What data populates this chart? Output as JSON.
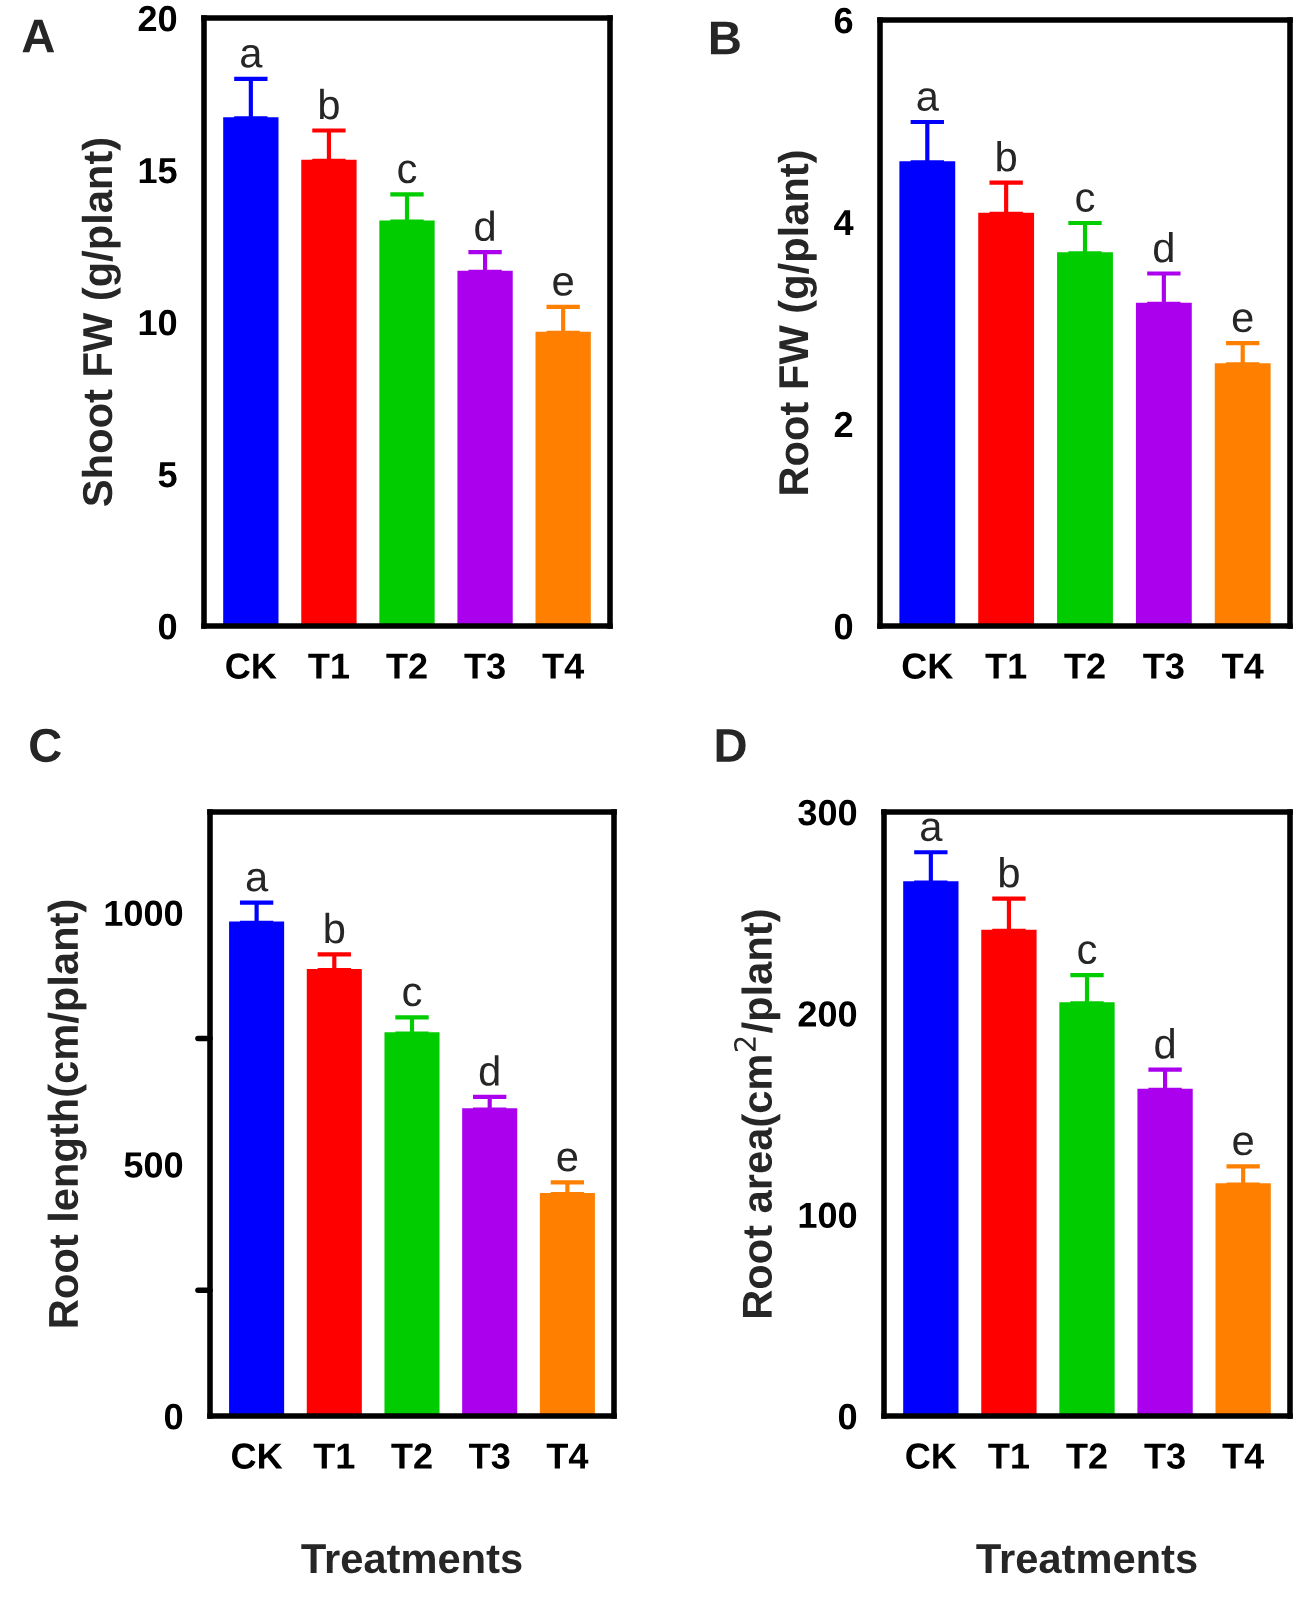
{
  "chart_data": [
    {
      "type": "bar",
      "title": "A",
      "ylabel": "Shoot FW (g/plant)",
      "categories": [
        "CK",
        "T1",
        "T2",
        "T3",
        "T4"
      ],
      "values": [
        16.7,
        15.3,
        13.3,
        11.65,
        9.64
      ],
      "colors": [
        "#0000ff",
        "#ff0000",
        "#00cc00",
        "#aa00ee",
        "#ff8000"
      ],
      "errors": [
        [
          16.7,
          18.0
        ],
        [
          15.3,
          16.3
        ],
        [
          13.3,
          14.2
        ],
        [
          11.65,
          12.3
        ],
        [
          9.64,
          10.5
        ]
      ],
      "ylim": [
        0,
        20
      ],
      "yticks": [
        0,
        5,
        10,
        15,
        20
      ],
      "grid": false,
      "legend": false,
      "annotations": [
        {
          "text": "a",
          "x": "CK",
          "y": 18.0
        },
        {
          "text": "b",
          "x": "T1",
          "y": 16.3
        },
        {
          "text": "c",
          "x": "T2",
          "y": 14.2
        },
        {
          "text": "d",
          "x": "T3",
          "y": 12.3
        },
        {
          "text": "e",
          "x": "T4",
          "y": 10.5
        }
      ]
    },
    {
      "type": "bar",
      "title": "B",
      "ylabel": "Root FW (g/plant)",
      "categories": [
        "CK",
        "T1",
        "T2",
        "T3",
        "T4"
      ],
      "values": [
        4.59,
        4.08,
        3.69,
        3.19,
        2.59
      ],
      "colors": [
        "#0000ff",
        "#ff0000",
        "#00cc00",
        "#aa00ee",
        "#ff8000"
      ],
      "errors": [
        [
          4.59,
          4.99
        ],
        [
          4.08,
          4.39
        ],
        [
          3.69,
          3.99
        ],
        [
          3.19,
          3.49
        ],
        [
          2.59,
          2.8
        ]
      ],
      "ylim": [
        0,
        6
      ],
      "yticks": [
        0,
        2,
        4,
        6
      ],
      "grid": false,
      "legend": false,
      "annotations": [
        {
          "text": "a",
          "x": "CK",
          "y": 4.99
        },
        {
          "text": "b",
          "x": "T1",
          "y": 4.39
        },
        {
          "text": "c",
          "x": "T2",
          "y": 3.99
        },
        {
          "text": "d",
          "x": "T3",
          "y": 3.49
        },
        {
          "text": "e",
          "x": "T4",
          "y": 2.8
        }
      ]
    },
    {
      "type": "bar",
      "title": "C",
      "ylabel": "Root length(cm/plant)",
      "xlabel": "Treatments",
      "categories": [
        "CK",
        "T1",
        "T2",
        "T3",
        "T4"
      ],
      "values": [
        980,
        886,
        760,
        609,
        441
      ],
      "colors": [
        "#0000ff",
        "#ff0000",
        "#00cc00",
        "#aa00ee",
        "#ff8000"
      ],
      "errors": [
        [
          980,
          1020
        ],
        [
          886,
          917
        ],
        [
          760,
          792
        ],
        [
          609,
          634
        ],
        [
          441,
          464
        ]
      ],
      "ylim": [
        0,
        1200
      ],
      "yticks": [
        0,
        {
          "value": 250,
          "label": null
        },
        500,
        {
          "value": 750,
          "label": null
        },
        1000
      ],
      "grid": false,
      "legend": false,
      "annotations": [
        {
          "text": "a",
          "x": "CK",
          "y": 1020
        },
        {
          "text": "b",
          "x": "T1",
          "y": 917
        },
        {
          "text": "c",
          "x": "T2",
          "y": 792
        },
        {
          "text": "d",
          "x": "T3",
          "y": 634
        },
        {
          "text": "e",
          "x": "T4",
          "y": 464
        }
      ]
    },
    {
      "type": "bar",
      "title": "D",
      "ylabel": "Root area(cm$^{2}$/plant)",
      "xlabel": "Treatments",
      "categories": [
        "CK",
        "T1",
        "T2",
        "T3",
        "T4"
      ],
      "values": [
        265,
        241,
        205,
        162,
        115
      ],
      "colors": [
        "#0000ff",
        "#ff0000",
        "#00cc00",
        "#aa00ee",
        "#ff8000"
      ],
      "errors": [
        [
          265,
          280
        ],
        [
          241,
          257
        ],
        [
          205,
          219
        ],
        [
          162,
          172
        ],
        [
          115,
          124
        ]
      ],
      "ylim": [
        0,
        300
      ],
      "yticks": [
        0,
        100,
        200,
        300
      ],
      "grid": false,
      "legend": false,
      "annotations": [
        {
          "text": "a",
          "x": "CK",
          "y": 280
        },
        {
          "text": "b",
          "x": "T1",
          "y": 257
        },
        {
          "text": "c",
          "x": "T2",
          "y": 219
        },
        {
          "text": "d",
          "x": "T3",
          "y": 172
        },
        {
          "text": "e",
          "x": "T4",
          "y": 124
        }
      ]
    }
  ]
}
